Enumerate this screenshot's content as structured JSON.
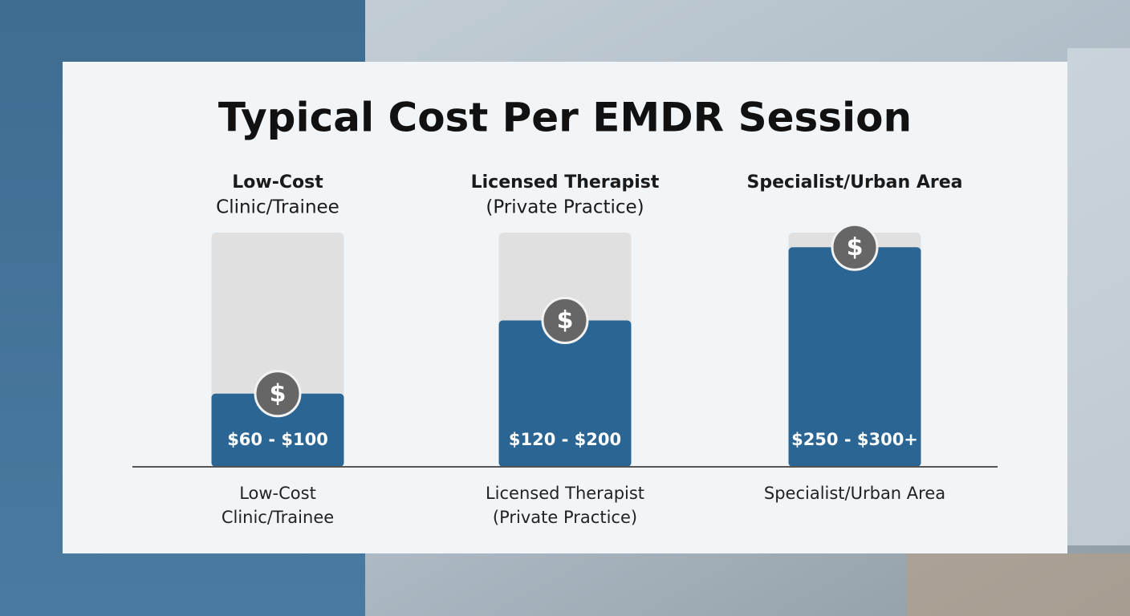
{
  "chart_data": {
    "type": "bar",
    "title": "Typical Cost Per EMDR Session",
    "headers": [
      [
        "Low-Cost",
        "Clinic/Trainee"
      ],
      [
        "Licensed Therapist",
        "(Private Practice)"
      ],
      [
        "Specialist/Urban Area"
      ]
    ],
    "categories": [
      [
        "Low-Cost",
        "Clinic/Trainee"
      ],
      [
        "Licensed Therapist",
        "(Private Practice)"
      ],
      [
        "Specialist/Urban Area"
      ]
    ],
    "values": [
      100,
      200,
      300
    ],
    "value_labels": [
      "$60 - $100",
      "$120 - $200",
      "$250 - $300+"
    ],
    "icon": "$",
    "color": "#2b6593",
    "ylim": [
      0,
      320
    ]
  }
}
